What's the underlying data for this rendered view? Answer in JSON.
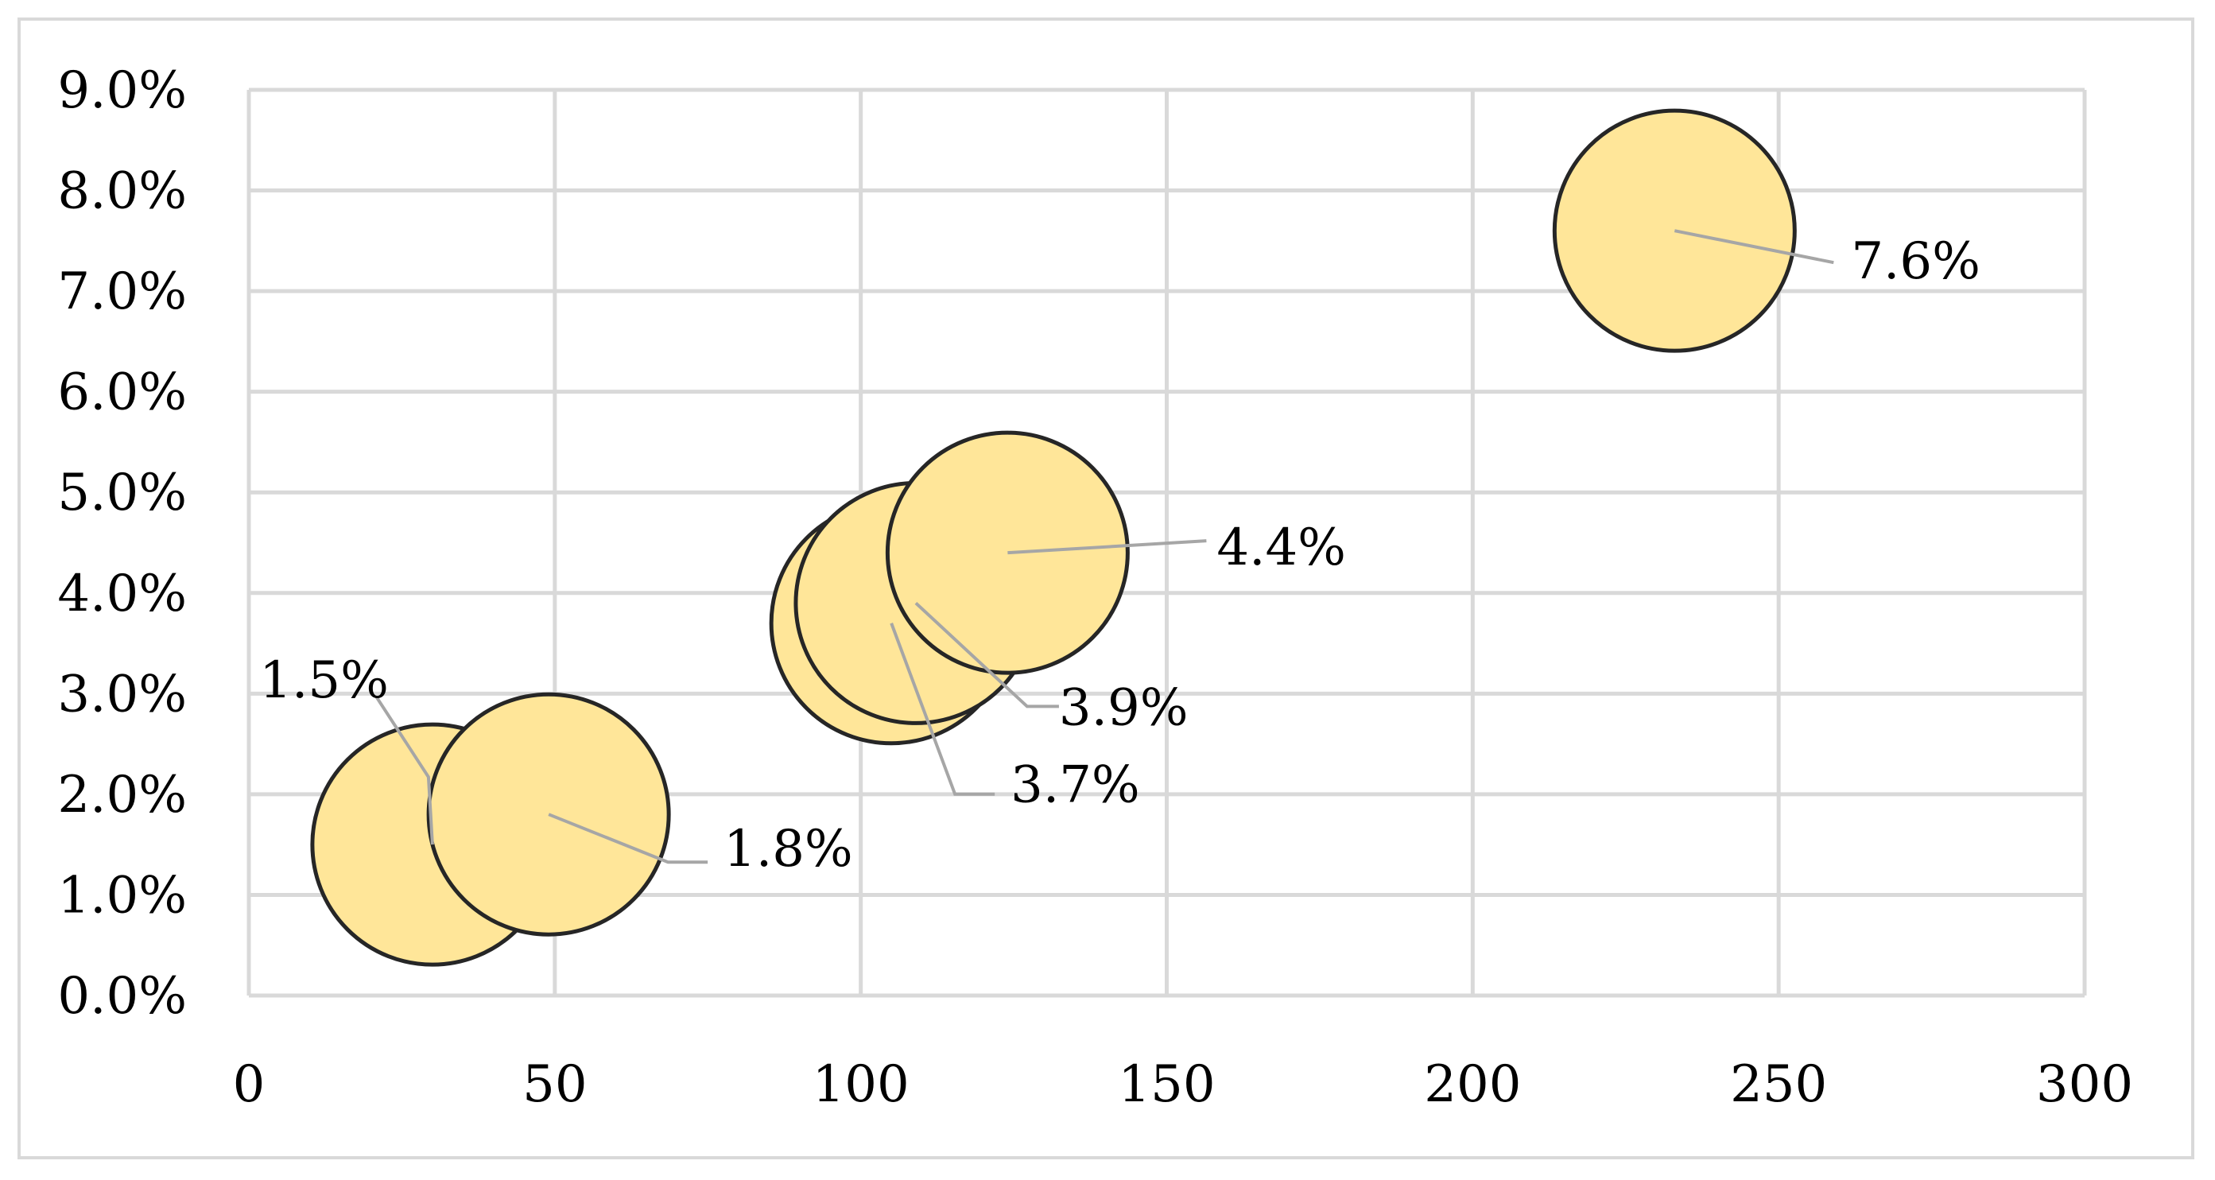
{
  "chart_data": {
    "type": "bubble",
    "title": "",
    "xlabel": "",
    "ylabel": "",
    "xlim": [
      0,
      300
    ],
    "ylim": [
      0,
      0.09
    ],
    "x_ticks": [
      0,
      50,
      100,
      150,
      200,
      250,
      300
    ],
    "x_tick_labels": [
      "0",
      "50",
      "100",
      "150",
      "200",
      "250",
      "300"
    ],
    "y_ticks": [
      0,
      0.01,
      0.02,
      0.03,
      0.04,
      0.05,
      0.06,
      0.07,
      0.08,
      0.09
    ],
    "y_tick_labels": [
      "0.0%",
      "1.0%",
      "2.0%",
      "3.0%",
      "4.0%",
      "5.0%",
      "6.0%",
      "7.0%",
      "8.0%",
      "9.0%"
    ],
    "grid": true,
    "legend": "none",
    "bubble_fill": "#ffe699",
    "bubble_edge": "#262626",
    "points": [
      {
        "x": 30,
        "y": 0.015,
        "label": "1.5%"
      },
      {
        "x": 49,
        "y": 0.018,
        "label": "1.8%"
      },
      {
        "x": 105,
        "y": 0.037,
        "label": "3.7%"
      },
      {
        "x": 109,
        "y": 0.039,
        "label": "3.9%"
      },
      {
        "x": 124,
        "y": 0.044,
        "label": "4.4%"
      },
      {
        "x": 233,
        "y": 0.076,
        "label": "7.6%"
      }
    ]
  }
}
